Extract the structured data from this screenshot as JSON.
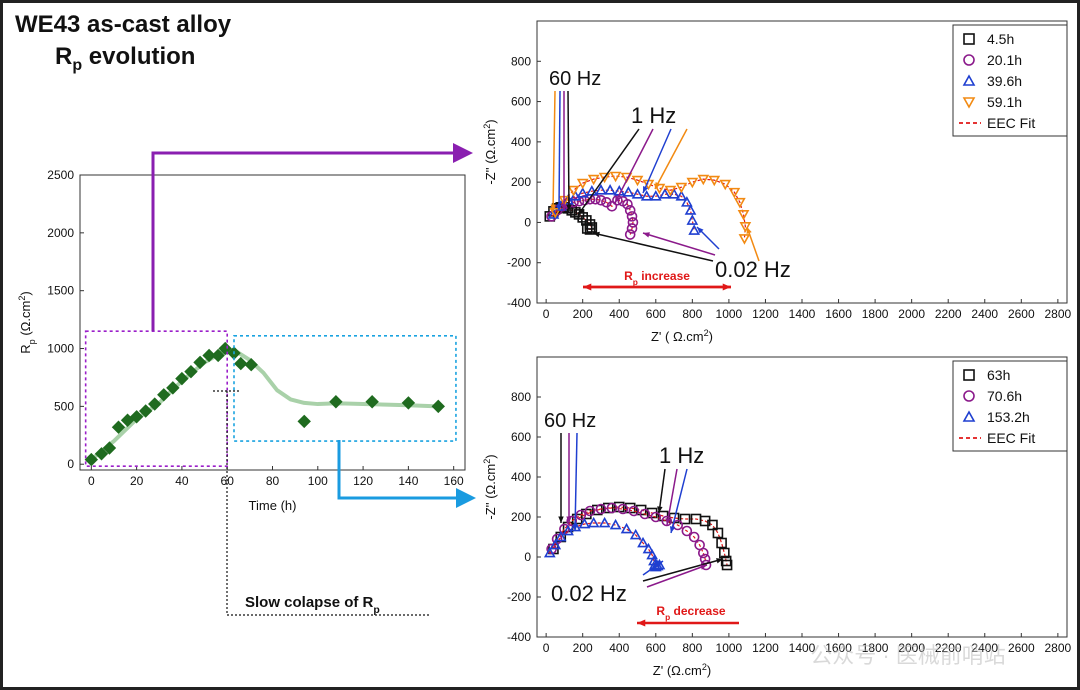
{
  "figure": {
    "title_line1": "WE43 as-cast alloy",
    "title_line2_pre": "R",
    "title_line2_sub": "p",
    "title_line2_post": " evolution",
    "collapse_note_pre": "Slow colapse of R",
    "collapse_note_sub": "p",
    "watermark": "公众号 · 医械前哨站",
    "colors": {
      "purple_box": "#9b1fc9",
      "cyan_box": "#1aa3e0",
      "arrow_purple": "#8a1fb0",
      "arrow_blue": "#1a9be0",
      "rp_marker": "#1f6b1f",
      "rp_fit": "#a9d1a9",
      "red": "#e01818"
    }
  },
  "chart_data": [
    {
      "id": "rp",
      "type": "scatter",
      "title": "",
      "xlabel": "Time (h)",
      "ylabel_pre": "R",
      "ylabel_sub": "p",
      "ylabel_post": " (Ω.cm",
      "ylabel_sup": "2",
      "ylabel_end": ")",
      "xlim": [
        -5,
        165
      ],
      "ylim": [
        -50,
        2500
      ],
      "xticks": [
        0,
        20,
        40,
        60,
        80,
        100,
        120,
        140,
        160
      ],
      "yticks": [
        0,
        500,
        1000,
        1500,
        2000,
        2500
      ],
      "x": [
        0,
        4.5,
        8,
        12,
        16,
        20,
        24,
        28,
        32,
        36,
        40,
        44,
        48,
        52,
        56,
        59.1,
        63,
        66,
        70.6,
        94,
        108,
        124,
        140,
        153.2
      ],
      "y": [
        40,
        90,
        140,
        320,
        380,
        410,
        460,
        520,
        600,
        660,
        740,
        800,
        880,
        940,
        940,
        1000,
        960,
        870,
        860,
        370,
        540,
        540,
        530,
        500
      ],
      "fit_x": [
        0,
        10,
        20,
        30,
        40,
        50,
        59,
        64,
        70,
        76,
        82,
        88,
        94,
        100,
        106,
        112,
        120,
        130,
        140,
        153
      ],
      "fit_y": [
        40,
        200,
        390,
        530,
        720,
        880,
        980,
        975,
        900,
        790,
        640,
        560,
        530,
        520,
        525,
        525,
        520,
        515,
        510,
        500
      ]
    },
    {
      "id": "nyq_top",
      "type": "scatter",
      "xlabel": "Z' (  Ω.cm",
      "xlabel_sup": "2",
      "xlabel_end": ")",
      "ylabel": "-Z'' (Ω.cm",
      "ylabel_sup": "2",
      "ylabel_end": ")",
      "xlim": [
        -50,
        2850
      ],
      "ylim": [
        -400,
        1000
      ],
      "xticks": [
        0,
        200,
        400,
        600,
        800,
        1000,
        1200,
        1400,
        1600,
        1800,
        2000,
        2200,
        2400,
        2600,
        2800
      ],
      "yticks": [
        -400,
        -200,
        0,
        200,
        400,
        600,
        800
      ],
      "annotations": {
        "hz60": "60 Hz",
        "hz1": "1 Hz",
        "hz002": "0.02 Hz",
        "rp_change_pre": "R",
        "rp_change_sub": "p",
        "rp_change_post": " increase"
      },
      "series": [
        {
          "name": "4.5h",
          "marker": "square",
          "color": "#111111",
          "x": [
            20,
            40,
            60,
            80,
            100,
            120,
            140,
            160,
            180,
            200,
            220,
            240,
            250,
            240,
            225
          ],
          "y": [
            30,
            55,
            70,
            75,
            75,
            70,
            60,
            50,
            40,
            25,
            10,
            -10,
            -25,
            -35,
            -30
          ]
        },
        {
          "name": "20.1h",
          "marker": "circle",
          "color": "#8b1a8b",
          "x": [
            30,
            60,
            90,
            120,
            150,
            180,
            210,
            240,
            270,
            300,
            330,
            360,
            390,
            420,
            445,
            460,
            470,
            475,
            470,
            460
          ],
          "y": [
            30,
            60,
            80,
            95,
            100,
            105,
            110,
            115,
            115,
            110,
            100,
            80,
            110,
            105,
            90,
            60,
            30,
            0,
            -30,
            -60
          ]
        },
        {
          "name": "39.6h",
          "marker": "triangle-up",
          "color": "#1f3fd0",
          "x": [
            40,
            80,
            120,
            160,
            200,
            250,
            300,
            350,
            400,
            450,
            500,
            550,
            600,
            650,
            700,
            740,
            770,
            790,
            800,
            810
          ],
          "y": [
            40,
            80,
            110,
            130,
            145,
            155,
            160,
            160,
            155,
            150,
            140,
            130,
            130,
            140,
            140,
            130,
            100,
            60,
            10,
            -40
          ]
        },
        {
          "name": "59.1h",
          "marker": "triangle-down",
          "color": "#f28a12",
          "x": [
            50,
            100,
            150,
            200,
            260,
            320,
            380,
            440,
            500,
            560,
            620,
            680,
            740,
            800,
            860,
            920,
            980,
            1030,
            1060,
            1080,
            1090,
            1085
          ],
          "y": [
            50,
            110,
            160,
            195,
            215,
            225,
            230,
            225,
            210,
            190,
            170,
            160,
            175,
            200,
            215,
            210,
            190,
            150,
            100,
            40,
            -20,
            -80
          ]
        }
      ],
      "fit_label": "EEC Fit"
    },
    {
      "id": "nyq_bottom",
      "type": "scatter",
      "xlabel": "Z' (Ω.cm",
      "xlabel_sup": "2",
      "xlabel_end": ")",
      "ylabel": "-Z'' (Ω.cm",
      "ylabel_sup": "2",
      "ylabel_end": ")",
      "xlim": [
        -50,
        2850
      ],
      "ylim": [
        -400,
        1000
      ],
      "xticks": [
        0,
        200,
        400,
        600,
        800,
        1000,
        1200,
        1400,
        1600,
        1800,
        2000,
        2200,
        2400,
        2600,
        2800
      ],
      "yticks": [
        -400,
        -200,
        0,
        200,
        400,
        600,
        800
      ],
      "annotations": {
        "hz60": "60 Hz",
        "hz1": "1 Hz",
        "hz002": "0.02 Hz",
        "rp_change_pre": "R",
        "rp_change_sub": "p",
        "rp_change_post": " decrease"
      },
      "series": [
        {
          "name": "63h",
          "marker": "square",
          "color": "#111111",
          "x": [
            40,
            80,
            120,
            170,
            220,
            280,
            340,
            400,
            460,
            520,
            580,
            640,
            700,
            760,
            820,
            870,
            910,
            940,
            960,
            975,
            985,
            990
          ],
          "y": [
            40,
            100,
            150,
            190,
            215,
            235,
            245,
            250,
            245,
            235,
            220,
            205,
            195,
            190,
            190,
            180,
            160,
            120,
            70,
            20,
            -20,
            -40
          ]
        },
        {
          "name": "70.6h",
          "marker": "circle",
          "color": "#8b1a8b",
          "x": [
            30,
            60,
            100,
            140,
            190,
            240,
            300,
            360,
            420,
            480,
            540,
            600,
            660,
            720,
            770,
            810,
            840,
            860,
            870,
            875
          ],
          "y": [
            40,
            90,
            140,
            180,
            210,
            230,
            240,
            245,
            240,
            230,
            215,
            200,
            180,
            160,
            130,
            100,
            60,
            20,
            -10,
            -40
          ]
        },
        {
          "name": "153.2h",
          "marker": "triangle-up",
          "color": "#1f3fd0",
          "x": [
            20,
            50,
            80,
            120,
            160,
            210,
            260,
            320,
            380,
            440,
            490,
            530,
            560,
            580,
            590,
            595,
            600,
            610,
            620
          ],
          "y": [
            20,
            60,
            100,
            130,
            150,
            165,
            170,
            170,
            160,
            140,
            110,
            70,
            40,
            10,
            -20,
            -40,
            -50,
            -45,
            -40
          ]
        }
      ],
      "fit_label": "EEC Fit"
    }
  ]
}
